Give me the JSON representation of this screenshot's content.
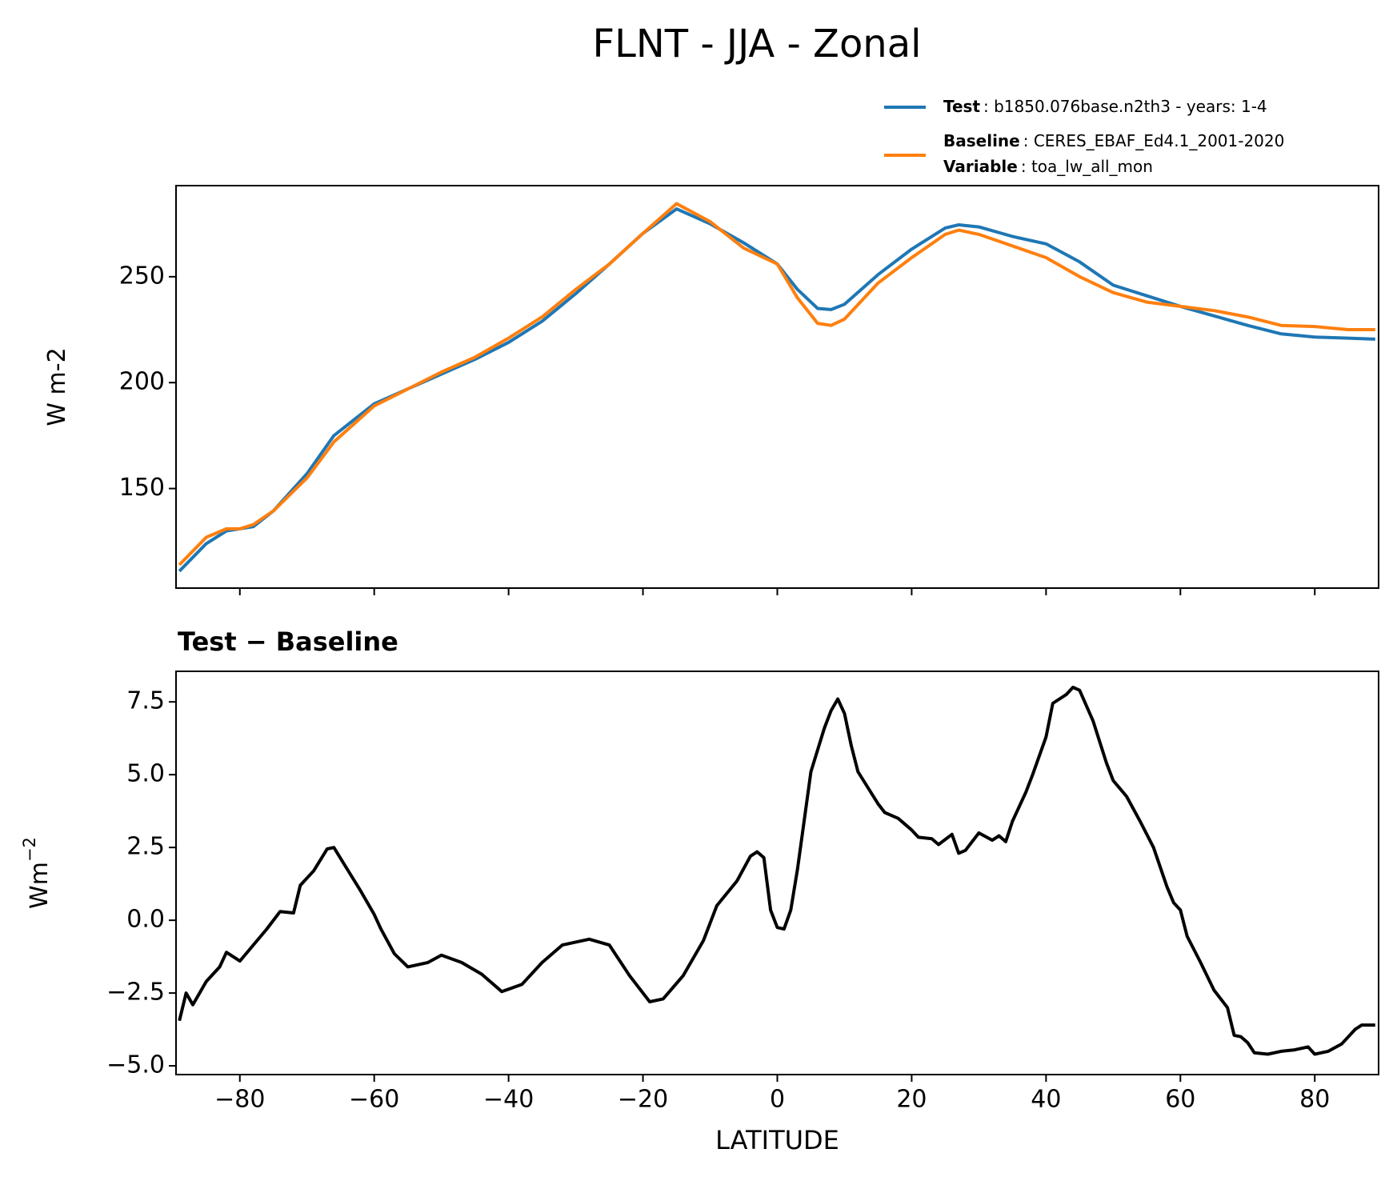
{
  "chart_data": [
    {
      "type": "line",
      "title": "FLNT - JJA - Zonal",
      "ylabel": "W m-2",
      "x": [
        -89,
        -85,
        -82,
        -80,
        -78,
        -75,
        -70,
        -66,
        -60,
        -55,
        -50,
        -45,
        -40,
        -35,
        -30,
        -25,
        -20,
        -15,
        -10,
        -5,
        0,
        3,
        6,
        8,
        10,
        15,
        20,
        25,
        27,
        30,
        35,
        40,
        45,
        50,
        55,
        60,
        65,
        70,
        75,
        80,
        85,
        89
      ],
      "series": [
        {
          "name": "Test",
          "label": ": b1850.076base.n2th3 - years: 1-4",
          "color": "#1f77b4",
          "values": [
            111,
            124,
            130,
            131,
            132,
            139.5,
            157,
            175,
            190,
            197,
            204,
            211,
            219,
            229,
            242,
            256,
            270.5,
            282,
            275,
            266,
            256,
            244,
            235,
            234.5,
            237,
            251,
            263,
            273,
            274.5,
            273.5,
            269,
            265.5,
            257,
            246,
            241,
            236,
            231.5,
            227,
            223,
            221.5,
            221,
            220.5
          ]
        },
        {
          "name": "Baseline",
          "label": ": CERES_EBAF_Ed4.1_2001-2020",
          "note_name": "Variable",
          "note": ": toa_lw_all_mon",
          "color": "#ff7f0e",
          "values": [
            114,
            127,
            131,
            131,
            133,
            139.5,
            155,
            172,
            189,
            197,
            205,
            212,
            221,
            231,
            244,
            256,
            270.5,
            284.5,
            276,
            263.5,
            256,
            240,
            228,
            227,
            230,
            247,
            259,
            270,
            272,
            270,
            264.5,
            259,
            250,
            242.5,
            238,
            236,
            234,
            231,
            227,
            226.5,
            225,
            225
          ]
        }
      ],
      "xlim": [
        -89.5,
        89.5
      ],
      "xticks": [
        -80,
        -60,
        -40,
        -20,
        0,
        20,
        40,
        60,
        80
      ],
      "ylim": [
        103,
        293
      ],
      "yticks": [
        150,
        200,
        250
      ]
    },
    {
      "type": "line",
      "title": "Test − Baseline",
      "xlabel": "LATITUDE",
      "ylabel": "Wm",
      "ylabel_superscript": "−2",
      "color": "#000000",
      "x": [
        -89,
        -88,
        -87,
        -85,
        -83,
        -82,
        -80,
        -78,
        -76,
        -74,
        -72,
        -71,
        -69,
        -67,
        -66,
        -64,
        -62,
        -60,
        -59,
        -57,
        -55,
        -52,
        -50,
        -47,
        -44,
        -41,
        -38,
        -35,
        -32,
        -28,
        -25,
        -22,
        -19,
        -17,
        -14,
        -11,
        -9,
        -6,
        -4,
        -3,
        -2,
        -1,
        0,
        1,
        2,
        3,
        5,
        7,
        8,
        9,
        10,
        11,
        12,
        15,
        16,
        18,
        20,
        21,
        23,
        24,
        26,
        27,
        28,
        30,
        32,
        33,
        34,
        35,
        37,
        38,
        40,
        41,
        43,
        44,
        45,
        47,
        49,
        50,
        52,
        54,
        56,
        58,
        59,
        60,
        61,
        63,
        65,
        67,
        68,
        69,
        70,
        71,
        73,
        75,
        77,
        79,
        80,
        82,
        84,
        86,
        87,
        89
      ],
      "values": [
        -3.45,
        -2.5,
        -2.9,
        -2.1,
        -1.6,
        -1.1,
        -1.4,
        -0.85,
        -0.3,
        0.3,
        0.25,
        1.2,
        1.7,
        2.45,
        2.5,
        1.75,
        1.0,
        0.2,
        -0.3,
        -1.15,
        -1.6,
        -1.45,
        -1.2,
        -1.45,
        -1.85,
        -2.45,
        -2.2,
        -1.45,
        -0.85,
        -0.65,
        -0.85,
        -1.9,
        -2.8,
        -2.7,
        -1.9,
        -0.7,
        0.5,
        1.35,
        2.2,
        2.35,
        2.15,
        0.35,
        -0.25,
        -0.3,
        0.35,
        1.75,
        5.1,
        6.6,
        7.2,
        7.6,
        7.1,
        6.0,
        5.1,
        4.0,
        3.7,
        3.5,
        3.1,
        2.85,
        2.8,
        2.6,
        2.95,
        2.3,
        2.4,
        3.0,
        2.75,
        2.9,
        2.7,
        3.4,
        4.4,
        5.0,
        6.3,
        7.45,
        7.75,
        8.0,
        7.9,
        6.85,
        5.4,
        4.8,
        4.25,
        3.4,
        2.5,
        1.15,
        0.6,
        0.35,
        -0.55,
        -1.45,
        -2.4,
        -3.0,
        -3.95,
        -4.0,
        -4.2,
        -4.55,
        -4.6,
        -4.5,
        -4.45,
        -4.35,
        -4.6,
        -4.5,
        -4.25,
        -3.75,
        -3.6,
        -3.6
      ],
      "xlim": [
        -89.5,
        89.5
      ],
      "xticks": [
        {
          "value": -80,
          "label": "−80"
        },
        {
          "value": -60,
          "label": "−60"
        },
        {
          "value": -40,
          "label": "−40"
        },
        {
          "value": -20,
          "label": "−20"
        },
        0,
        20,
        40,
        60,
        80
      ],
      "ylim": [
        -5.3,
        8.55
      ],
      "yticks": [
        {
          "value": -5,
          "label": "−5.0"
        },
        {
          "value": -2.5,
          "label": "−2.5"
        },
        {
          "value": 0,
          "label": "0.0"
        },
        2.5,
        {
          "value": 5,
          "label": "5.0"
        },
        7.5
      ]
    }
  ]
}
